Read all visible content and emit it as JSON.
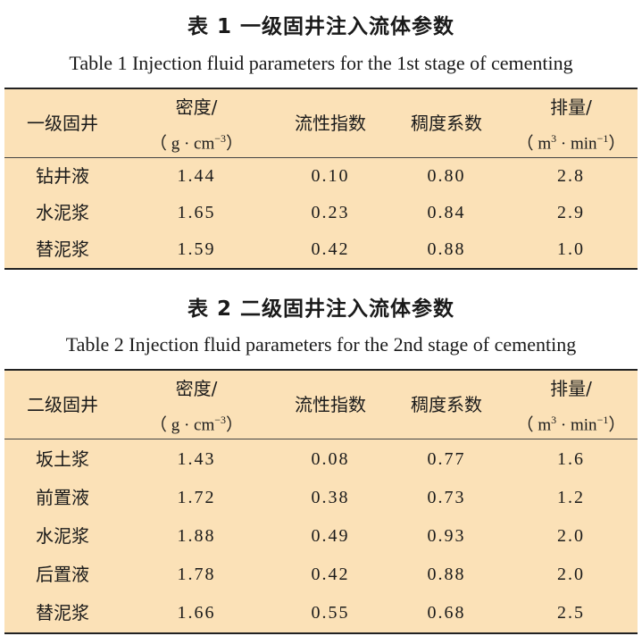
{
  "table1": {
    "caption_cn": "表 1   一级固井注入流体参数",
    "caption_en": "Table 1   Injection fluid parameters for the 1st stage of cementing",
    "headers": {
      "col0": "一级固井",
      "density": "密度/",
      "density_unit": "（ g · cm",
      "density_exp": "−3",
      "density_close": "）",
      "flow_index": "流性指数",
      "consistency": "稠度系数",
      "rate": "排量/",
      "rate_unit_a": "（ m",
      "rate_exp_a": "3",
      "rate_unit_b": " · min",
      "rate_exp_b": "−1",
      "rate_close": "）"
    },
    "rows": [
      {
        "name": "钻井液",
        "density": "1.44",
        "n": "0.10",
        "k": "0.80",
        "rate": "2.8"
      },
      {
        "name": "水泥浆",
        "density": "1.65",
        "n": "0.23",
        "k": "0.84",
        "rate": "2.9"
      },
      {
        "name": "替泥浆",
        "density": "1.59",
        "n": "0.42",
        "k": "0.88",
        "rate": "1.0"
      }
    ]
  },
  "table2": {
    "caption_cn": "表 2   二级固井注入流体参数",
    "caption_en": "Table 2   Injection fluid parameters for the 2nd stage of cementing",
    "headers": {
      "col0": "二级固井",
      "density": "密度/",
      "density_unit": "（ g · cm",
      "density_exp": "−3",
      "density_close": "）",
      "flow_index": "流性指数",
      "consistency": "稠度系数",
      "rate": "排量/",
      "rate_unit_a": "（ m",
      "rate_exp_a": "3",
      "rate_unit_b": " · min",
      "rate_exp_b": "−1",
      "rate_close": "）"
    },
    "rows": [
      {
        "name": "坂土浆",
        "density": "1.43",
        "n": "0.08",
        "k": "0.77",
        "rate": "1.6"
      },
      {
        "name": "前置液",
        "density": "1.72",
        "n": "0.38",
        "k": "0.73",
        "rate": "1.2"
      },
      {
        "name": "水泥浆",
        "density": "1.88",
        "n": "0.49",
        "k": "0.93",
        "rate": "2.0"
      },
      {
        "name": "后置液",
        "density": "1.78",
        "n": "0.42",
        "k": "0.88",
        "rate": "2.0"
      },
      {
        "name": "替泥浆",
        "density": "1.66",
        "n": "0.55",
        "k": "0.68",
        "rate": "2.5"
      }
    ]
  }
}
